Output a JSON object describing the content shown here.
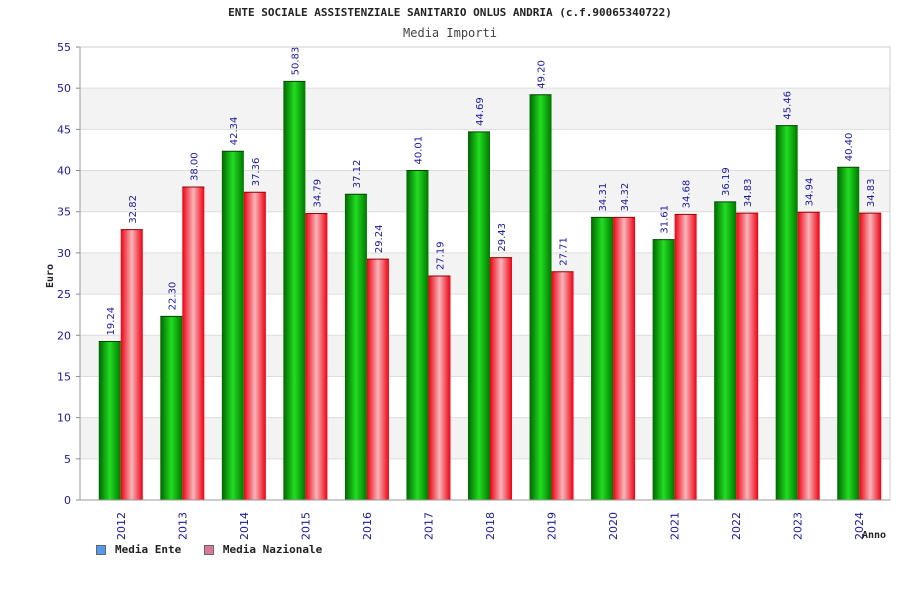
{
  "chart_data": {
    "type": "bar",
    "title": "ENTE SOCIALE ASSISTENZIALE SANITARIO ONLUS ANDRIA (c.f.90065340722)",
    "subtitle": "Media Importi",
    "xlabel": "Anno",
    "ylabel": "Euro",
    "ylim": [
      0,
      55
    ],
    "yticks": [
      0,
      5,
      10,
      15,
      20,
      25,
      30,
      35,
      40,
      45,
      50,
      55
    ],
    "categories": [
      "2012",
      "2013",
      "2014",
      "2015",
      "2016",
      "2017",
      "2018",
      "2019",
      "2020",
      "2021",
      "2022",
      "2023",
      "2024"
    ],
    "series": [
      {
        "name": "Media Ente",
        "color": "#00aa00",
        "values": [
          19.24,
          22.3,
          42.34,
          50.83,
          37.12,
          40.01,
          44.69,
          49.2,
          34.31,
          31.61,
          36.19,
          45.46,
          40.4
        ],
        "labels": [
          "19.24",
          "22.30",
          "42.34",
          "50.83",
          "37.12",
          "40.01",
          "44.69",
          "49.20",
          "34.31",
          "31.61",
          "36.19",
          "45.46",
          "40.40"
        ]
      },
      {
        "name": "Media Nazionale",
        "color": "#ee1122",
        "values": [
          32.82,
          38.0,
          37.36,
          34.79,
          29.24,
          27.19,
          29.43,
          27.71,
          34.32,
          34.68,
          34.83,
          34.94,
          34.83
        ],
        "labels": [
          "32.82",
          "38.00",
          "37.36",
          "34.79",
          "29.24",
          "27.19",
          "29.43",
          "27.71",
          "34.32",
          "34.68",
          "34.83",
          "34.94",
          "34.83"
        ]
      }
    ],
    "legend_swatches": [
      "#5599ee",
      "#dd7799"
    ],
    "grid": true,
    "legend": "bottom-left"
  }
}
